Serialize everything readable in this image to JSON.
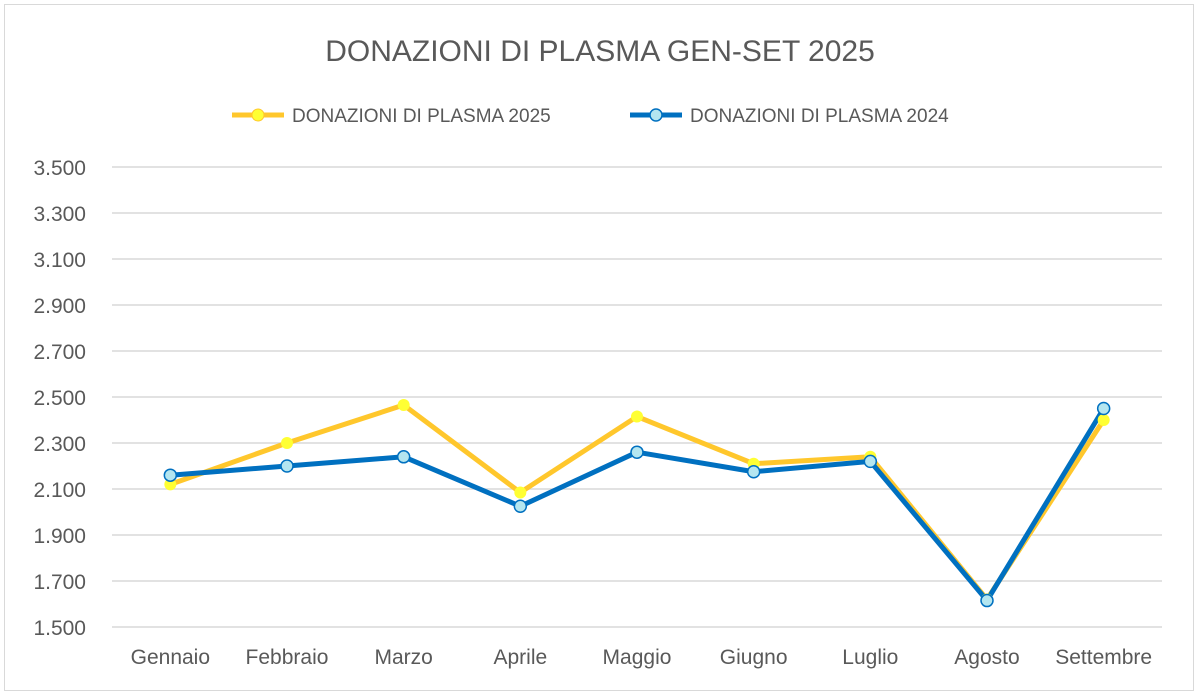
{
  "chart_data": {
    "type": "line",
    "title": "DONAZIONI DI PLASMA GEN-SET 2025",
    "categories": [
      "Gennaio",
      "Febbraio",
      "Marzo",
      "Aprile",
      "Maggio",
      "Giugno",
      "Luglio",
      "Agosto",
      "Settembre"
    ],
    "series": [
      {
        "name": "DONAZIONI DI PLASMA 2025",
        "values": [
          2120,
          2300,
          2465,
          2085,
          2415,
          2210,
          2240,
          1620,
          2400
        ],
        "color": "#ffc72c",
        "marker_fill": "#ffff33"
      },
      {
        "name": "DONAZIONI DI PLASMA 2024",
        "values": [
          2160,
          2200,
          2240,
          2025,
          2260,
          2175,
          2220,
          1615,
          2450
        ],
        "color": "#0070c0",
        "marker_fill": "#b4e6f0"
      }
    ],
    "yticks": [
      "1.500",
      "1.700",
      "1.900",
      "2.100",
      "2.300",
      "2.500",
      "2.700",
      "2.900",
      "3.100",
      "3.300",
      "3.500"
    ],
    "ylim": [
      1500,
      3500
    ],
    "xlabel": "",
    "ylabel": "",
    "grid": true,
    "legend_position": "top"
  }
}
